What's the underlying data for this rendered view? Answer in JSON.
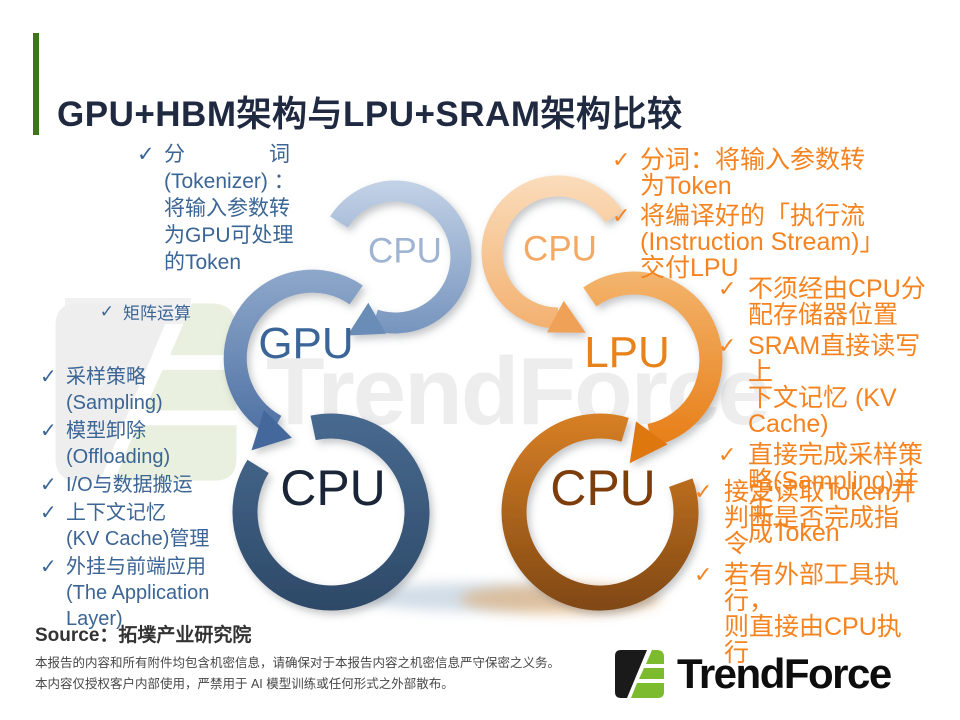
{
  "title": "GPU+HBM架构与LPU+SRAM架构比较",
  "icons": {
    "check": "✓"
  },
  "watermark": {
    "text": "TrendForce"
  },
  "diagram": {
    "left": {
      "top_label": "CPU",
      "mid_label": "GPU",
      "bottom_label": "CPU"
    },
    "right": {
      "top_label": "CPU",
      "mid_label": "LPU",
      "bottom_label": "CPU"
    }
  },
  "bullets": {
    "left_top": [
      "分　　　　词\n(Tokenizer) ：\n将输入参数转\n为GPU可处理\n的Token"
    ],
    "left_mid": [
      "矩阵运算"
    ],
    "left_bottom": [
      "采样策略\n(Sampling)",
      "模型卸除\n(Offloading)",
      "I/O与数据搬运",
      "上下文记忆\n(KV Cache)管理",
      "外挂与前端应用\n(The Application\nLayer)"
    ],
    "right_top": [
      "分词：将输入参数转\n为Token",
      "将编译好的「执行流\n(Instruction Stream)」\n交付LPU"
    ],
    "right_mid": [
      "不须经由CPU分\n配存储器位置",
      "SRAM直接读写上\n下文记忆 (KV\nCache)",
      "直接完成采样策\n略(Sampling)并生\n成Token"
    ],
    "right_bottom": [
      "接受读取Token并\n判断是否完成指令",
      "若有外部工具执行，\n则直接由CPU执行"
    ]
  },
  "footer": {
    "source": "Source：拓墣产业研究院",
    "disclaimer_line1": "本报告的内容和所有附件均包含机密信息，请确保对于本报告内容之机密信息严守保密之义务。",
    "disclaimer_line2": "本内容仅授权客户内部使用，严禁用于 AI 模型训练或任何形式之外部散布。",
    "logo_text": "TrendForce"
  },
  "colors": {
    "accent_green": "#3C7619",
    "title_navy": "#1F2940",
    "blue_text": "#3B6595",
    "orange_text": "#F5831F",
    "logo_green": "#7CBB2D"
  }
}
